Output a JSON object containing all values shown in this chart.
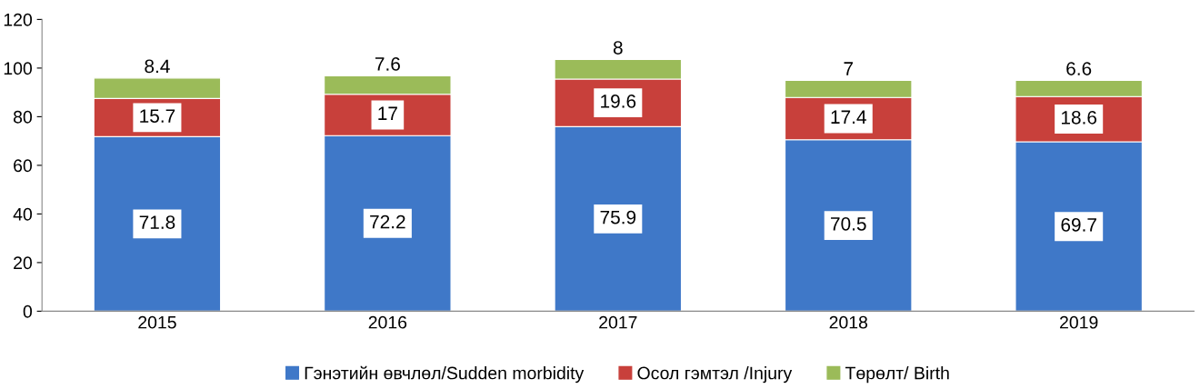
{
  "chart_data": {
    "type": "bar",
    "stacked": true,
    "categories": [
      "2015",
      "2016",
      "2017",
      "2018",
      "2019"
    ],
    "series": [
      {
        "name": "Гэнэтийн өвчлөл/Sudden morbidity",
        "color": "#3f78c8",
        "values": [
          71.8,
          72.2,
          75.9,
          70.5,
          69.7
        ]
      },
      {
        "name": "Осол гэмтэл /Injury",
        "color": "#c8403b",
        "values": [
          15.7,
          17,
          19.6,
          17.4,
          18.6
        ]
      },
      {
        "name": "Төрөлт/ Birth",
        "color": "#9bbb59",
        "values": [
          8.4,
          7.6,
          8,
          7,
          6.6
        ]
      }
    ],
    "ylim": [
      0,
      120
    ],
    "yticks": [
      0,
      20,
      40,
      60,
      80,
      100,
      120
    ],
    "data_labels": true,
    "grid": false,
    "legend": "bottom"
  }
}
